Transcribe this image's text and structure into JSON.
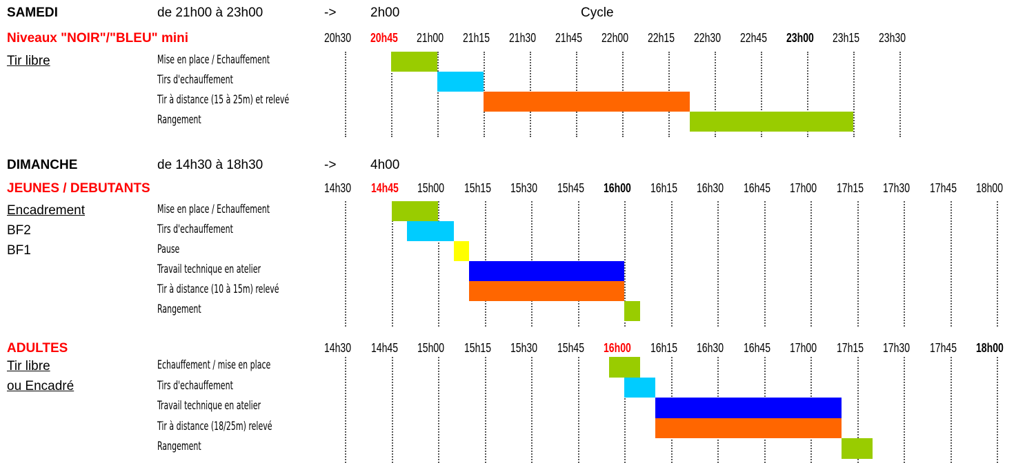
{
  "colors": {
    "green": "#99cc00",
    "cyan": "#00ccff",
    "orange": "#ff6600",
    "yellow": "#ffff00",
    "blue": "#0000ff",
    "red_text": "#ff0000"
  },
  "samedi": {
    "day": "SAMEDI",
    "hours": "de 21h00 à 23h00",
    "arrow": "->",
    "duration": "2h00",
    "cycle_label": "Cycle",
    "level": "Niveaux \"NOIR\"/\"BLEU\" mini",
    "ticks": [
      "20h30",
      "20h45",
      "21h00",
      "21h15",
      "21h30",
      "21h45",
      "22h00",
      "22h15",
      "22h30",
      "22h45",
      "23h00",
      "23h15",
      "23h30"
    ],
    "tick_styles": [
      "",
      "red-bold",
      "",
      "",
      "",
      "",
      "",
      "",
      "",
      "",
      "bold",
      "",
      ""
    ],
    "left_labels": [
      "Tir libre"
    ],
    "activities": [
      "Mise en place / Echauffement",
      "Tirs d'echauffement",
      "Tir à distance (15 à 25m) et relevé",
      "Rangement"
    ],
    "bars": [
      {
        "row": 0,
        "start": "20h45",
        "end": "21h00",
        "color": "green"
      },
      {
        "row": 1,
        "start": "21h00",
        "end": "21h15",
        "color": "cyan"
      },
      {
        "row": 2,
        "start": "21h15",
        "end": "22h22",
        "color": "orange"
      },
      {
        "row": 3,
        "start": "22h22",
        "end": "23h15",
        "color": "green"
      }
    ]
  },
  "dimanche": {
    "day": "DIMANCHE",
    "hours": "de 14h30 à 18h30",
    "arrow": "->",
    "duration": "4h00",
    "jeunes": {
      "title": "JEUNES / DEBUTANTS",
      "ticks": [
        "14h30",
        "14h45",
        "15h00",
        "15h15",
        "15h30",
        "15h45",
        "16h00",
        "16h15",
        "16h30",
        "16h45",
        "17h00",
        "17h15",
        "17h30",
        "17h45",
        "18h00"
      ],
      "tick_styles": [
        "",
        "red-bold",
        "",
        "",
        "",
        "",
        "bold",
        "",
        "",
        "",
        "",
        "",
        "",
        "",
        ""
      ],
      "left_labels": [
        "Encadrement",
        "BF2",
        "BF1"
      ],
      "activities": [
        "Mise en place / Echauffement",
        "Tirs d'echauffement",
        "Pause",
        "Travail technique en atelier",
        "Tir à distance (10 à 15m) relevé",
        "Rangement"
      ],
      "bars": [
        {
          "row": 0,
          "start": "14h45",
          "end": "15h00",
          "color": "green"
        },
        {
          "row": 1,
          "start": "14h50",
          "end": "15h05",
          "color": "cyan"
        },
        {
          "row": 2,
          "start": "15h05",
          "end": "15h10",
          "color": "yellow"
        },
        {
          "row": 3,
          "start": "15h10",
          "end": "16h00",
          "color": "blue"
        },
        {
          "row": 4,
          "start": "15h10",
          "end": "16h00",
          "color": "orange"
        },
        {
          "row": 5,
          "start": "16h00",
          "end": "16h05",
          "color": "green"
        }
      ]
    },
    "adultes": {
      "title": "ADULTES",
      "ticks": [
        "14h30",
        "14h45",
        "15h00",
        "15h15",
        "15h30",
        "15h45",
        "16h00",
        "16h15",
        "16h30",
        "16h45",
        "17h00",
        "17h15",
        "17h30",
        "17h45",
        "18h00"
      ],
      "tick_styles": [
        "",
        "",
        "",
        "",
        "",
        "",
        "red-bold",
        "",
        "",
        "",
        "",
        "",
        "",
        "",
        "bold"
      ],
      "left_labels": [
        "Tir libre",
        "ou Encadré"
      ],
      "activities": [
        "Echauffement / mise en place",
        "Tirs d'echauffement",
        "Travail technique en atelier",
        "Tir à distance (18/25m) relevé",
        "Rangement"
      ],
      "bars": [
        {
          "row": 0,
          "start": "15h55",
          "end": "16h05",
          "color": "green"
        },
        {
          "row": 1,
          "start": "16h00",
          "end": "16h10",
          "color": "cyan"
        },
        {
          "row": 2,
          "start": "16h10",
          "end": "17h10",
          "color": "blue"
        },
        {
          "row": 3,
          "start": "16h10",
          "end": "17h10",
          "color": "orange"
        },
        {
          "row": 4,
          "start": "17h10",
          "end": "17h20",
          "color": "green"
        }
      ]
    }
  }
}
